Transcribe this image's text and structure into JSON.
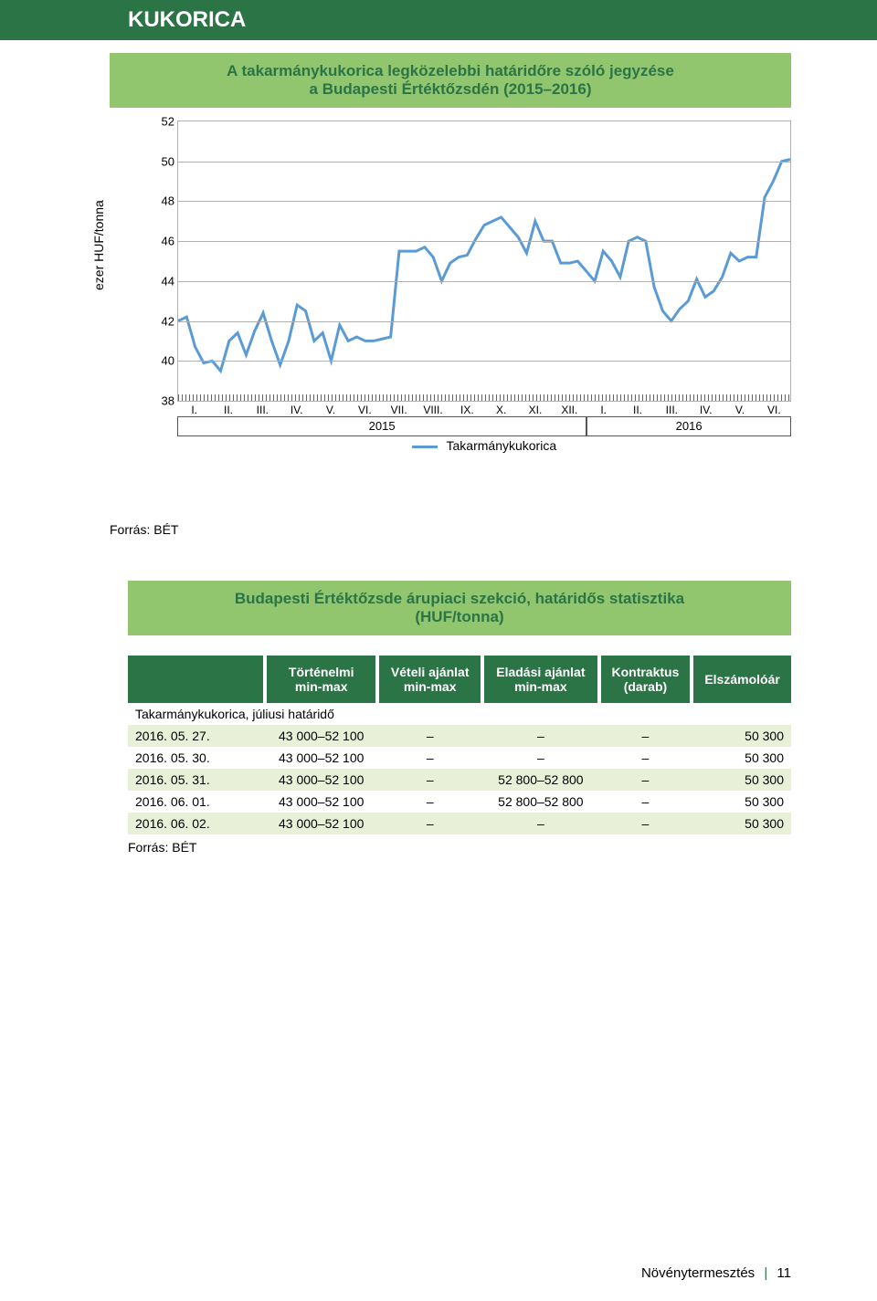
{
  "page_title": "KUKORICA",
  "chart": {
    "type": "line",
    "title_line1": "A takarmánykukorica legközelebbi határidőre szóló jegyzése",
    "title_line2": "a Budapesti Értéktőzsdén (2015–2016)",
    "y_axis_label": "ezer HUF/tonna",
    "ylim": [
      38,
      52
    ],
    "ytick_step": 2,
    "yticks": [
      "38",
      "40",
      "42",
      "44",
      "46",
      "48",
      "50",
      "52"
    ],
    "xticks": [
      "I.",
      "II.",
      "III.",
      "IV.",
      "V.",
      "VI.",
      "VII.",
      "VIII.",
      "IX.",
      "X.",
      "XI.",
      "XII.",
      "I.",
      "II.",
      "III.",
      "IV.",
      "V.",
      "VI."
    ],
    "year_labels": [
      "2015",
      "2016"
    ],
    "year_split_fraction": 0.667,
    "legend_label": "Takarmánykukorica",
    "line_color": "#5a9bd5",
    "line_width": 3,
    "grid_color": "#b0b0b0",
    "background_color": "#ffffff",
    "series_y": [
      42.0,
      42.2,
      40.7,
      39.9,
      40.0,
      39.5,
      41.0,
      41.4,
      40.3,
      41.5,
      42.4,
      41.0,
      39.8,
      41.0,
      42.8,
      42.5,
      41.0,
      41.4,
      40.0,
      41.8,
      41.0,
      41.2,
      41.0,
      41.0,
      41.1,
      41.2,
      45.5,
      45.5,
      45.5,
      45.7,
      45.2,
      44.0,
      44.9,
      45.2,
      45.3,
      46.1,
      46.8,
      47.0,
      47.2,
      46.7,
      46.2,
      45.4,
      47.0,
      46.0,
      46.0,
      44.9,
      44.9,
      45.0,
      44.5,
      44.0,
      45.5,
      45.0,
      44.2,
      46.0,
      46.2,
      46.0,
      43.7,
      42.5,
      42.0,
      42.6,
      43.0,
      44.1,
      43.2,
      43.5,
      44.2,
      45.4,
      45.0,
      45.2,
      45.2,
      48.2,
      49.0,
      50.0,
      50.1
    ]
  },
  "source_label": "Forrás: BÉT",
  "table": {
    "title_line1": "Budapesti Értéktőzsde árupiaci szekció, határidős statisztika",
    "title_line2": "(HUF/tonna)",
    "columns": [
      "Történelmi min-max",
      "Vételi ajánlat min-max",
      "Eladási ajánlat min-max",
      "Kontraktus (darab)",
      "Elszámolóár"
    ],
    "columns_l1": [
      "Történelmi",
      "Vételi ajánlat",
      "Eladási ajánlat",
      "Kontraktus",
      "Elszámolóár"
    ],
    "columns_l2": [
      "min-max",
      "min-max",
      "min-max",
      "(darab)",
      ""
    ],
    "subheader": "Takarmánykukorica, júliusi határidő",
    "rows": [
      {
        "date": "2016. 05. 27.",
        "hist": "43 000–52 100",
        "buy": "–",
        "sell": "–",
        "contracts": "–",
        "settle": "50 300"
      },
      {
        "date": "2016. 05. 30.",
        "hist": "43 000–52 100",
        "buy": "–",
        "sell": "–",
        "contracts": "–",
        "settle": "50 300"
      },
      {
        "date": "2016. 05. 31.",
        "hist": "43 000–52 100",
        "buy": "–",
        "sell": "52 800–52 800",
        "contracts": "–",
        "settle": "50 300"
      },
      {
        "date": "2016. 06. 01.",
        "hist": "43 000–52 100",
        "buy": "–",
        "sell": "52 800–52 800",
        "contracts": "–",
        "settle": "50 300"
      },
      {
        "date": "2016. 06. 02.",
        "hist": "43 000–52 100",
        "buy": "–",
        "sell": "–",
        "contracts": "–",
        "settle": "50 300"
      }
    ],
    "header_bg": "#2a7445",
    "header_fg": "#ffffff",
    "row_even_bg": "#e8f0d8",
    "row_odd_bg": "#ffffff"
  },
  "footer": {
    "section": "Növénytermesztés",
    "separator": "|",
    "page_number": "11"
  }
}
